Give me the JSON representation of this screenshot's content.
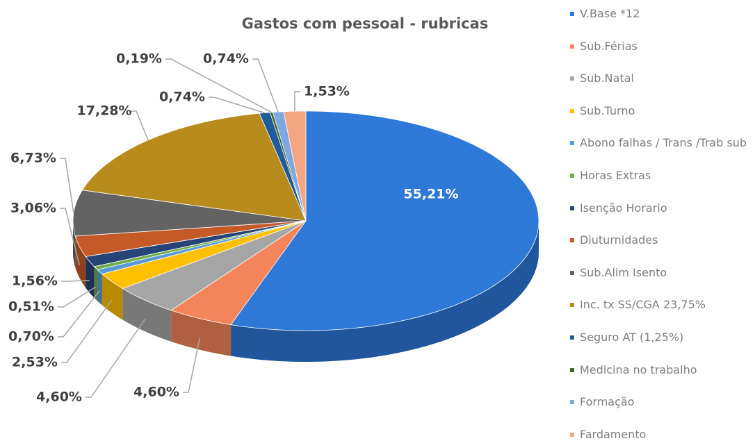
{
  "chart_data": {
    "type": "pie3d",
    "title": "Gastos com pessoal - rubricas",
    "categories": [
      "V.Base *12",
      "Sub.Férias",
      "Sub.Natal",
      "Sub.Turno",
      "Abono falhas / Trans /Trab sub",
      "Horas Extras",
      "Isenção Horario",
      "Diuturnidades",
      "Sub.Alim Isento",
      "Inc. tx SS/CGA 23,75%",
      "Seguro AT (1,25%)",
      "Medicina no trabalho",
      "Formação",
      "Fardamento"
    ],
    "values": [
      55.21,
      4.6,
      4.6,
      2.53,
      0.7,
      0.51,
      1.56,
      3.06,
      6.73,
      17.28,
      0.74,
      0.19,
      0.74,
      1.53
    ],
    "value_labels": [
      "55,21%",
      "4,60%",
      "4,60%",
      "2,53%",
      "0,70%",
      "0,51%",
      "1,56%",
      "3,06%",
      "6,73%",
      "17,28%",
      "0,74%",
      "0,19%",
      "0,74%",
      "1,53%"
    ],
    "colors": [
      "#2e78d8",
      "#f4855a",
      "#a6a6a6",
      "#ffc000",
      "#5b9bd5",
      "#70ad47",
      "#264478",
      "#c55a28",
      "#636363",
      "#b88c1c",
      "#1f5c99",
      "#43682b",
      "#7ca7e0",
      "#f4a582"
    ],
    "legend": "right"
  }
}
